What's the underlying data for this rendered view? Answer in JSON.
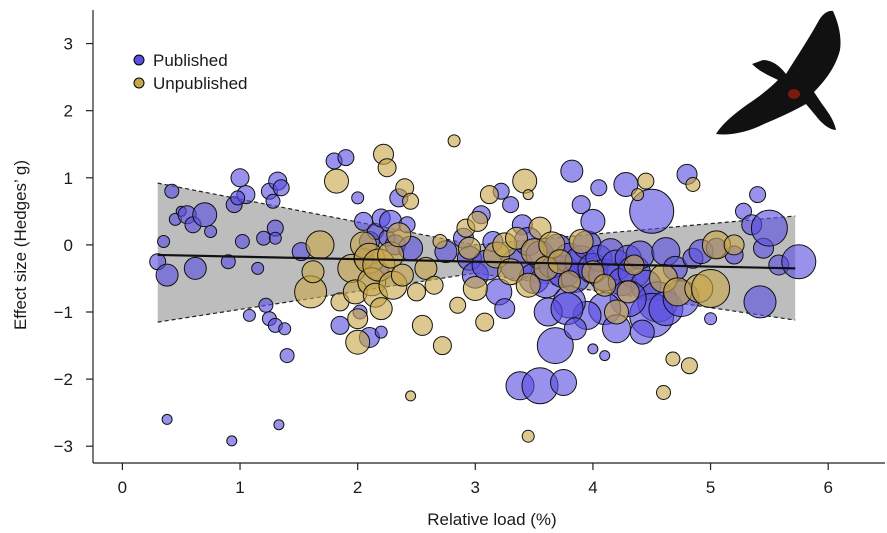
{
  "chart_data": {
    "type": "scatter",
    "xlabel": "Relative load (%)",
    "ylabel": "Effect size (Hedges’ g)",
    "xlim": [
      -0.25,
      6.5
    ],
    "ylim": [
      -3.25,
      3.5
    ],
    "x_ticks": [
      0,
      1,
      2,
      3,
      4,
      5,
      6
    ],
    "y_ticks": [
      -3,
      -2,
      -1,
      0,
      1,
      2,
      3
    ],
    "y_tick_labels": [
      "−3",
      "−2",
      "−1",
      "0",
      "1",
      "2",
      "3"
    ],
    "legend": {
      "placement": "top-left",
      "entries": [
        "Published",
        "Unpublished"
      ]
    },
    "colors": {
      "Published": "#5a4fe0",
      "Unpublished": "#c8a84a",
      "ci_band": "#bdbdbd",
      "fit_line": "#111111"
    },
    "regression": {
      "x": [
        0.3,
        5.72
      ],
      "y": [
        -0.15,
        -0.35
      ]
    },
    "confidence_band": {
      "upper": [
        [
          0.3,
          0.92
        ],
        [
          3.0,
          0.0
        ],
        [
          5.72,
          0.43
        ]
      ],
      "lower": [
        [
          0.3,
          -1.15
        ],
        [
          3.0,
          -0.42
        ],
        [
          5.72,
          -1.12
        ]
      ]
    },
    "series": [
      {
        "name": "Published",
        "points": [
          [
            0.3,
            -0.25,
            8
          ],
          [
            0.35,
            0.05,
            6
          ],
          [
            0.38,
            -0.45,
            11
          ],
          [
            0.42,
            0.8,
            7
          ],
          [
            0.45,
            0.38,
            6
          ],
          [
            0.5,
            0.5,
            5
          ],
          [
            0.55,
            0.45,
            9
          ],
          [
            0.6,
            0.3,
            8
          ],
          [
            0.62,
            -0.35,
            11
          ],
          [
            0.7,
            0.45,
            12
          ],
          [
            0.75,
            0.2,
            6
          ],
          [
            0.9,
            -0.25,
            7
          ],
          [
            0.95,
            0.6,
            8
          ],
          [
            1.0,
            1.0,
            9
          ],
          [
            1.05,
            0.75,
            9
          ],
          [
            1.02,
            0.05,
            7
          ],
          [
            1.08,
            -1.05,
            6
          ],
          [
            0.98,
            0.7,
            7
          ],
          [
            1.15,
            -0.35,
            6
          ],
          [
            1.2,
            0.1,
            7
          ],
          [
            1.22,
            -0.9,
            7
          ],
          [
            1.25,
            0.8,
            8
          ],
          [
            1.28,
            0.65,
            7
          ],
          [
            1.3,
            0.25,
            8
          ],
          [
            1.32,
            0.95,
            9
          ],
          [
            1.35,
            0.85,
            8
          ],
          [
            1.25,
            -1.1,
            7
          ],
          [
            1.3,
            -1.2,
            7
          ],
          [
            1.38,
            -1.25,
            6
          ],
          [
            1.4,
            -1.65,
            7
          ],
          [
            1.52,
            -0.1,
            9
          ],
          [
            1.3,
            0.1,
            6
          ],
          [
            0.38,
            -2.6,
            5
          ],
          [
            0.93,
            -2.92,
            5
          ],
          [
            1.33,
            -2.68,
            5
          ],
          [
            1.8,
            1.25,
            8
          ],
          [
            1.9,
            1.3,
            8
          ],
          [
            2.0,
            0.7,
            6
          ],
          [
            2.05,
            0.35,
            9
          ],
          [
            2.1,
            0.05,
            10
          ],
          [
            2.15,
            0.2,
            8
          ],
          [
            2.2,
            0.4,
            9
          ],
          [
            2.25,
            0.1,
            8
          ],
          [
            2.28,
            0.35,
            11
          ],
          [
            2.35,
            0.7,
            9
          ],
          [
            2.42,
            0.3,
            8
          ],
          [
            2.05,
            -0.2,
            10
          ],
          [
            2.18,
            -0.4,
            10
          ],
          [
            1.85,
            -1.2,
            9
          ],
          [
            2.02,
            -1.0,
            7
          ],
          [
            2.1,
            -1.38,
            10
          ],
          [
            2.2,
            -1.3,
            6
          ],
          [
            2.32,
            0.0,
            10
          ],
          [
            2.45,
            -0.05,
            12
          ],
          [
            2.75,
            -0.1,
            11
          ],
          [
            2.9,
            0.1,
            10
          ],
          [
            2.95,
            -0.2,
            12
          ],
          [
            3.0,
            -0.45,
            13
          ],
          [
            3.05,
            0.45,
            9
          ],
          [
            3.1,
            -0.3,
            15
          ],
          [
            3.15,
            0.05,
            10
          ],
          [
            3.2,
            -0.7,
            13
          ],
          [
            3.25,
            -0.95,
            10
          ],
          [
            3.22,
            0.8,
            8
          ],
          [
            3.3,
            0.6,
            8
          ],
          [
            3.35,
            -0.3,
            16
          ],
          [
            3.4,
            0.3,
            10
          ],
          [
            3.45,
            0.05,
            14
          ],
          [
            3.5,
            -0.5,
            15
          ],
          [
            3.55,
            -0.15,
            14
          ],
          [
            3.6,
            -0.55,
            16
          ],
          [
            3.65,
            -0.3,
            13
          ],
          [
            3.7,
            -0.05,
            14
          ],
          [
            3.75,
            -0.4,
            16
          ],
          [
            3.8,
            -0.2,
            15
          ],
          [
            3.85,
            -0.5,
            14
          ],
          [
            3.9,
            -0.25,
            16
          ],
          [
            3.95,
            0.0,
            14
          ],
          [
            4.0,
            -0.35,
            15
          ],
          [
            4.05,
            -0.2,
            13
          ],
          [
            4.1,
            -0.45,
            16
          ],
          [
            4.15,
            -0.1,
            13
          ],
          [
            4.2,
            -0.3,
            15
          ],
          [
            4.25,
            -0.55,
            14
          ],
          [
            4.3,
            -0.2,
            13
          ],
          [
            4.35,
            -0.4,
            16
          ],
          [
            4.4,
            -0.15,
            14
          ],
          [
            4.45,
            -0.6,
            15
          ],
          [
            3.82,
            1.1,
            11
          ],
          [
            4.05,
            0.85,
            8
          ],
          [
            3.9,
            0.6,
            9
          ],
          [
            4.28,
            0.9,
            12
          ],
          [
            4.5,
            0.5,
            22
          ],
          [
            4.8,
            1.05,
            10
          ],
          [
            4.0,
            0.35,
            12
          ],
          [
            4.62,
            -0.1,
            14
          ],
          [
            4.7,
            -0.35,
            12
          ],
          [
            4.85,
            -0.2,
            10
          ],
          [
            4.92,
            -0.1,
            12
          ],
          [
            5.05,
            -0.05,
            10
          ],
          [
            5.0,
            -1.1,
            6
          ],
          [
            4.55,
            -0.85,
            20
          ],
          [
            4.5,
            -1.05,
            22
          ],
          [
            4.62,
            -0.95,
            17
          ],
          [
            4.75,
            -0.8,
            18
          ],
          [
            4.3,
            -0.8,
            18
          ],
          [
            4.1,
            -0.95,
            16
          ],
          [
            3.95,
            -1.05,
            14
          ],
          [
            3.8,
            -0.85,
            16
          ],
          [
            3.62,
            -1.0,
            14
          ],
          [
            3.68,
            -1.5,
            18
          ],
          [
            3.78,
            -0.95,
            16
          ],
          [
            3.85,
            -1.25,
            11
          ],
          [
            4.2,
            -1.25,
            14
          ],
          [
            4.42,
            -1.3,
            12
          ],
          [
            3.38,
            -2.1,
            14
          ],
          [
            3.55,
            -2.1,
            18
          ],
          [
            3.75,
            -2.05,
            13
          ],
          [
            4.0,
            -1.55,
            5
          ],
          [
            4.1,
            -1.65,
            5
          ],
          [
            5.28,
            0.5,
            8
          ],
          [
            5.35,
            0.3,
            10
          ],
          [
            5.4,
            0.75,
            8
          ],
          [
            5.45,
            -0.05,
            10
          ],
          [
            5.5,
            0.25,
            18
          ],
          [
            5.42,
            -0.85,
            16
          ],
          [
            5.58,
            -0.3,
            10
          ],
          [
            5.75,
            -0.25,
            17
          ],
          [
            5.2,
            -0.15,
            9
          ]
        ]
      },
      {
        "name": "Unpublished",
        "points": [
          [
            1.6,
            -0.7,
            16
          ],
          [
            1.62,
            -0.4,
            11
          ],
          [
            1.68,
            0.0,
            14
          ],
          [
            1.82,
            0.95,
            12
          ],
          [
            1.85,
            -0.85,
            9
          ],
          [
            1.95,
            -0.35,
            14
          ],
          [
            1.98,
            -0.7,
            12
          ],
          [
            2.0,
            -1.1,
            10
          ],
          [
            2.0,
            -1.45,
            12
          ],
          [
            2.05,
            0.0,
            13
          ],
          [
            2.1,
            -0.2,
            15
          ],
          [
            2.12,
            -0.55,
            14
          ],
          [
            2.15,
            -0.75,
            12
          ],
          [
            2.18,
            -0.3,
            16
          ],
          [
            2.2,
            -0.95,
            11
          ],
          [
            2.22,
            1.35,
            10
          ],
          [
            2.25,
            1.15,
            9
          ],
          [
            2.28,
            -0.15,
            13
          ],
          [
            2.3,
            -0.6,
            14
          ],
          [
            2.35,
            0.15,
            12
          ],
          [
            2.38,
            -0.45,
            11
          ],
          [
            2.4,
            0.85,
            9
          ],
          [
            2.45,
            0.65,
            8
          ],
          [
            2.5,
            -0.7,
            9
          ],
          [
            2.55,
            -1.2,
            10
          ],
          [
            2.58,
            -0.35,
            11
          ],
          [
            2.65,
            -0.6,
            9
          ],
          [
            2.7,
            0.05,
            7
          ],
          [
            2.72,
            -1.5,
            9
          ],
          [
            2.82,
            1.55,
            6
          ],
          [
            2.85,
            -0.9,
            8
          ],
          [
            2.92,
            0.25,
            9
          ],
          [
            2.95,
            -0.05,
            11
          ],
          [
            3.0,
            -0.65,
            12
          ],
          [
            3.02,
            0.35,
            10
          ],
          [
            3.08,
            -1.15,
            9
          ],
          [
            3.12,
            0.75,
            9
          ],
          [
            3.18,
            -0.15,
            13
          ],
          [
            3.25,
            0.0,
            12
          ],
          [
            3.3,
            -0.4,
            13
          ],
          [
            3.35,
            0.1,
            11
          ],
          [
            3.42,
            0.95,
            12
          ],
          [
            3.45,
            -0.6,
            12
          ],
          [
            3.5,
            -0.1,
            13
          ],
          [
            3.55,
            0.25,
            11
          ],
          [
            3.6,
            -0.35,
            12
          ],
          [
            3.65,
            0.0,
            13
          ],
          [
            3.72,
            -0.25,
            12
          ],
          [
            3.8,
            -0.55,
            11
          ],
          [
            3.9,
            0.05,
            12
          ],
          [
            4.0,
            -0.4,
            11
          ],
          [
            4.1,
            -0.6,
            11
          ],
          [
            4.2,
            -1.0,
            12
          ],
          [
            4.3,
            -0.7,
            11
          ],
          [
            4.35,
            -0.3,
            10
          ],
          [
            4.38,
            0.75,
            6
          ],
          [
            4.45,
            0.95,
            8
          ],
          [
            4.6,
            -0.5,
            14
          ],
          [
            4.68,
            -1.7,
            7
          ],
          [
            4.72,
            -0.7,
            14
          ],
          [
            4.82,
            -1.8,
            8
          ],
          [
            4.85,
            0.9,
            7
          ],
          [
            4.9,
            -0.65,
            14
          ],
          [
            5.0,
            -0.65,
            19
          ],
          [
            5.05,
            0.0,
            14
          ],
          [
            5.2,
            0.0,
            10
          ],
          [
            3.45,
            0.75,
            5
          ],
          [
            4.6,
            -2.2,
            7
          ],
          [
            3.45,
            -2.85,
            6
          ],
          [
            2.45,
            -2.25,
            5
          ]
        ]
      }
    ]
  },
  "bird": {
    "icon": "bird-silhouette-icon",
    "color": "#111111",
    "accent": "#7a1a0f"
  }
}
